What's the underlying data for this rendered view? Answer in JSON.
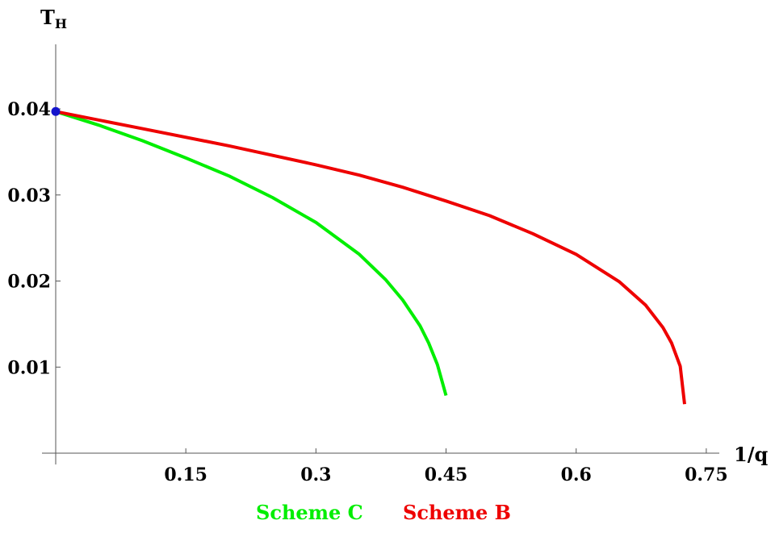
{
  "chart_data": {
    "type": "line",
    "xlabel": "1/q",
    "ylabel_main": "T",
    "ylabel_sub": "H",
    "xlim": [
      0,
      0.765
    ],
    "ylim": [
      0,
      0.0475
    ],
    "x_ticks": [
      0.15,
      0.3,
      0.45,
      0.6,
      0.75
    ],
    "x_tick_labels": [
      "0.15",
      "0.3",
      "0.45",
      "0.6",
      "0.75"
    ],
    "y_ticks": [
      0.01,
      0.02,
      0.03,
      0.04
    ],
    "y_tick_labels": [
      "0.01",
      "0.02",
      "0.03",
      "0.04"
    ],
    "grid": false,
    "legend_position": "bottom",
    "series": [
      {
        "name": "Scheme C",
        "color": "#00ee00",
        "x": [
          0.0,
          0.05,
          0.1,
          0.15,
          0.2,
          0.25,
          0.3,
          0.35,
          0.38,
          0.4,
          0.42,
          0.43,
          0.44,
          0.45
        ],
        "y": [
          0.0397,
          0.0381,
          0.0363,
          0.0343,
          0.0322,
          0.0297,
          0.0268,
          0.0231,
          0.0202,
          0.0178,
          0.0148,
          0.0128,
          0.0103,
          0.0067
        ]
      },
      {
        "name": "Scheme B",
        "color": "#ee0000",
        "x": [
          0.0,
          0.1,
          0.2,
          0.3,
          0.35,
          0.4,
          0.45,
          0.5,
          0.55,
          0.6,
          0.65,
          0.68,
          0.7,
          0.71,
          0.72,
          0.725
        ],
        "y": [
          0.0397,
          0.0377,
          0.0357,
          0.0335,
          0.0323,
          0.0309,
          0.0293,
          0.0276,
          0.0255,
          0.0231,
          0.0199,
          0.0172,
          0.0146,
          0.0128,
          0.0101,
          0.0057
        ]
      }
    ],
    "point": {
      "x": 0.0,
      "y": 0.0397,
      "color": "#1414cc"
    }
  }
}
